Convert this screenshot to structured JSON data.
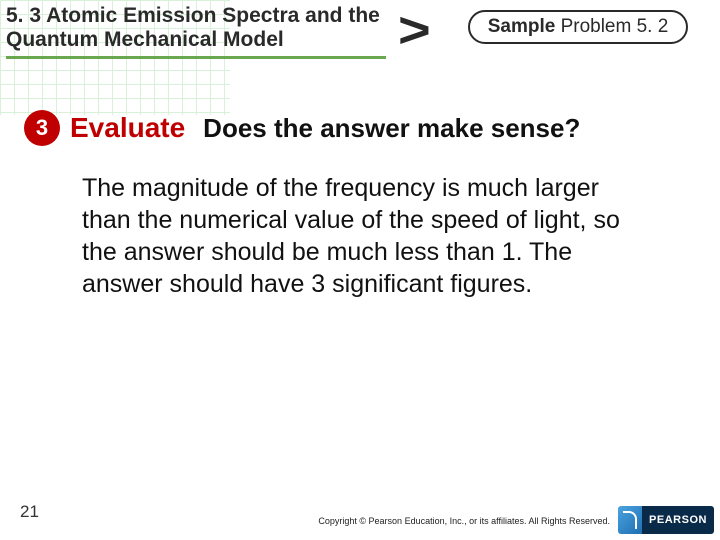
{
  "header": {
    "section_title": "5. 3 Atomic Emission Spectra and the Quantum Mechanical Model",
    "underline_color": "#6aa84f",
    "chevron": ">",
    "sample_bold": "Sample",
    "sample_rest": " Problem 5. 2"
  },
  "step": {
    "number": "3",
    "circle_bg": "#c00000",
    "circle_fg": "#ffffff",
    "label": "Evaluate",
    "label_color": "#c00000",
    "question": "Does the answer make sense?"
  },
  "body": {
    "text": "The magnitude of the frequency is much larger than the numerical value of the speed of light, so the answer should be much less than 1. The answer should have 3 significant figures."
  },
  "footer": {
    "page_number": "21",
    "copyright": "Copyright © Pearson Education, Inc., or its affiliates. All Rights Reserved.",
    "logo_text": "PEARSON"
  },
  "colors": {
    "grid": "#d9f0d9",
    "text": "#111111",
    "logo_bg": "#0a2a4a"
  }
}
